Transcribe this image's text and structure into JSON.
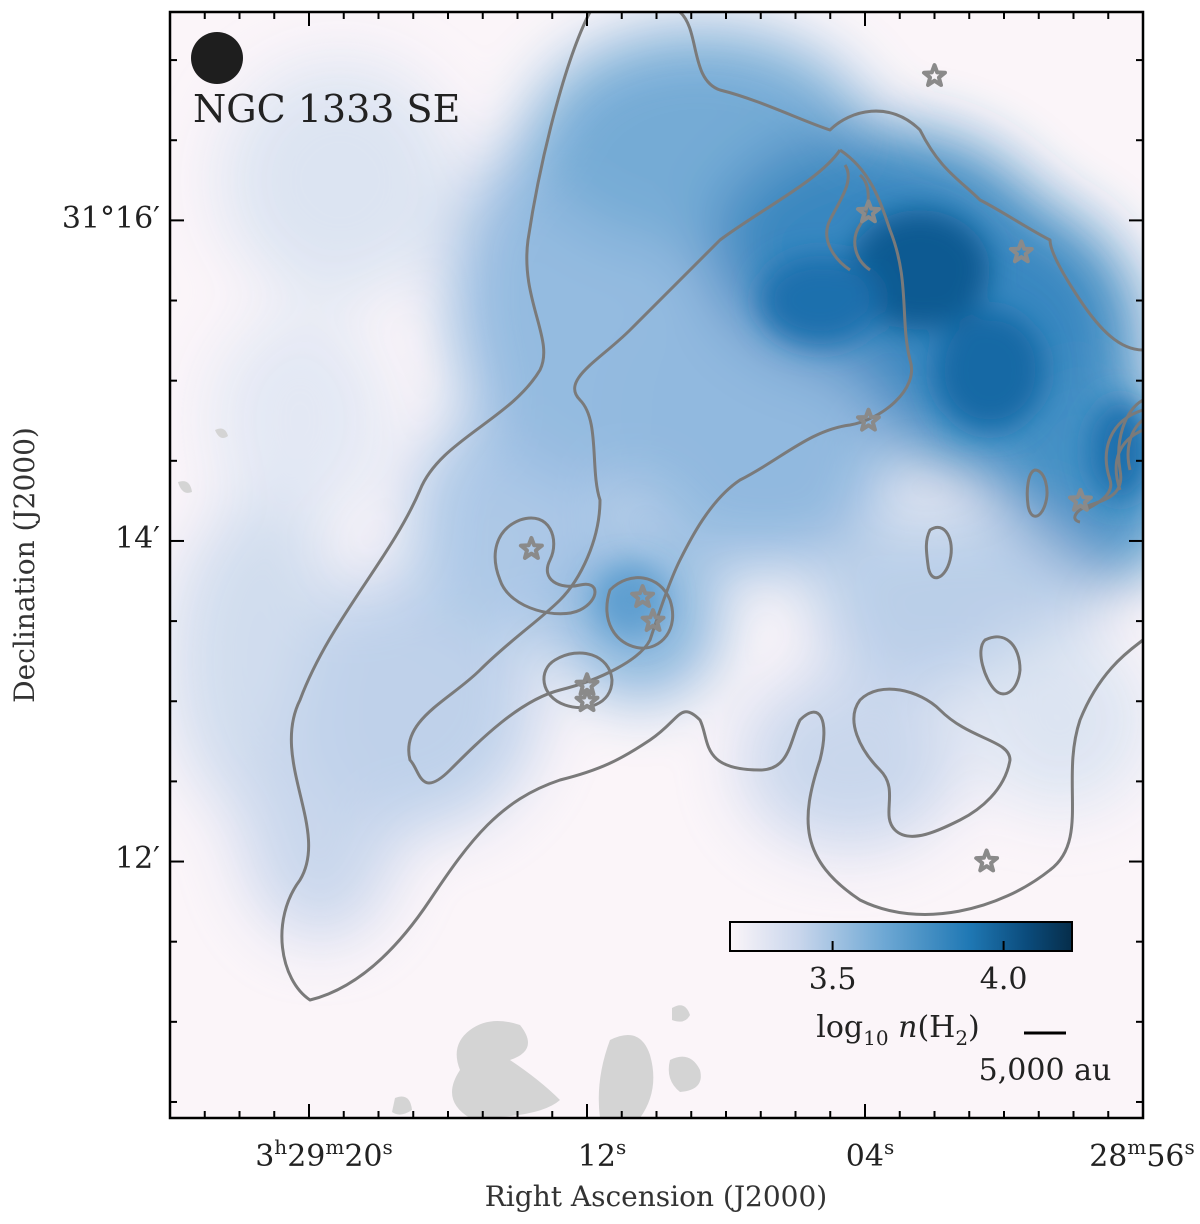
{
  "chart_data": {
    "type": "heatmap",
    "field_label": "NGC 1333 SE",
    "xlabel": "Right Ascension (J2000)",
    "ylabel": "Declination (J2000)",
    "x_ticks": [
      {
        "label": "3h29m20s",
        "ra_s": 20
      },
      {
        "label": "12s",
        "ra_s": 12
      },
      {
        "label": "04s",
        "ra_s": 4
      },
      {
        "label": "28m56s",
        "ra_s": -4
      }
    ],
    "y_ticks": [
      {
        "label": "31°16′",
        "dec_arcmin": 16
      },
      {
        "label": "14′",
        "dec_arcmin": 14
      },
      {
        "label": "12′",
        "dec_arcmin": 12
      }
    ],
    "xlim_ra_s": [
      24.0,
      -4.0
    ],
    "ylim_dec_arcmin": [
      10.4,
      17.3
    ],
    "colorbar": {
      "label": "log10 n(H2)",
      "range": [
        3.2,
        4.2
      ],
      "ticks": [
        "3.5",
        "4.0"
      ],
      "colors": [
        "#fbf5f9",
        "#c9d6ec",
        "#6ea8d4",
        "#1f78b4",
        "#0b4b7b",
        "#062d4a"
      ]
    },
    "scale_bar": "5,000 au",
    "contour_color": "#7a7a7a",
    "star_color": "#8a8a8a",
    "stars": [
      {
        "ra_s": 2.0,
        "dec_arcmin": 16.9
      },
      {
        "ra_s": 3.9,
        "dec_arcmin": 16.05
      },
      {
        "ra_s": -0.5,
        "dec_arcmin": 15.8
      },
      {
        "ra_s": 3.9,
        "dec_arcmin": 14.75
      },
      {
        "ra_s": -2.2,
        "dec_arcmin": 14.25
      },
      {
        "ra_s": 13.6,
        "dec_arcmin": 13.95
      },
      {
        "ra_s": 10.4,
        "dec_arcmin": 13.65
      },
      {
        "ra_s": 10.1,
        "dec_arcmin": 13.5
      },
      {
        "ra_s": 12.0,
        "dec_arcmin": 13.1
      },
      {
        "ra_s": 12.0,
        "dec_arcmin": 13.0
      },
      {
        "ra_s": 0.5,
        "dec_arcmin": 12.0
      }
    ],
    "grid": false
  }
}
